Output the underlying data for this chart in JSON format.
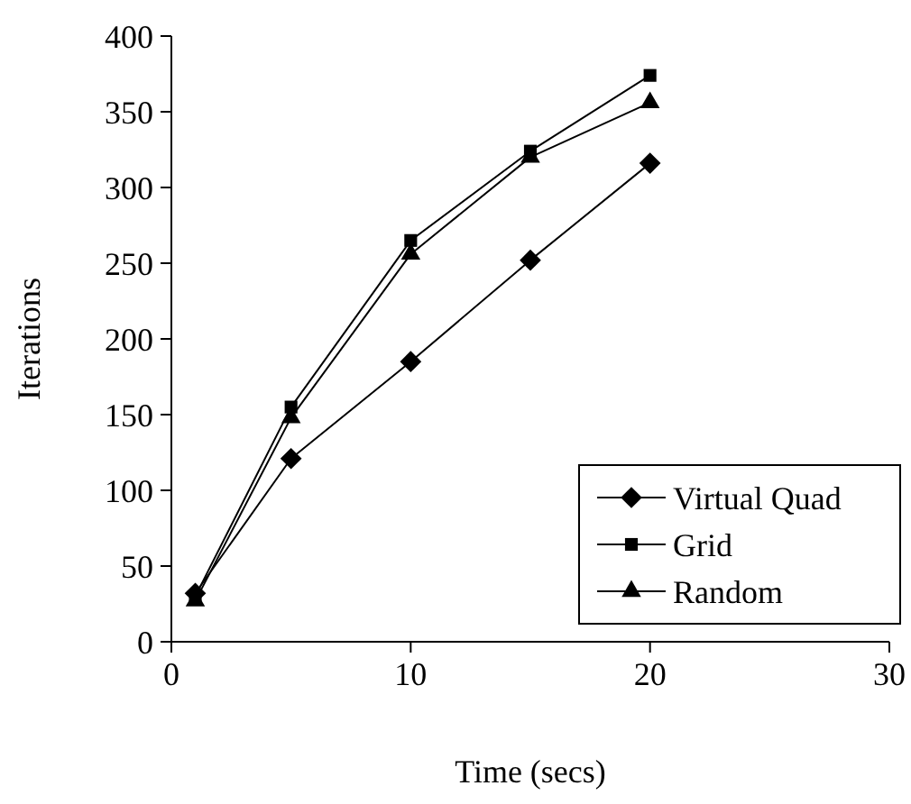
{
  "chart_data": {
    "type": "line",
    "xlabel": "Time (secs)",
    "ylabel": "Iterations",
    "x": [
      1,
      5,
      10,
      15,
      20
    ],
    "xlim": [
      0,
      30
    ],
    "xticks": [
      0,
      10,
      20,
      30
    ],
    "ylim": [
      0,
      400
    ],
    "yticks": [
      0,
      50,
      100,
      150,
      200,
      250,
      300,
      350,
      400
    ],
    "grid": false,
    "legend": "bottom right",
    "line_style": "solid",
    "series": [
      {
        "name": "Virtual Quad",
        "color": "#000000",
        "marker": "diamond",
        "values": [
          32,
          121,
          185,
          252,
          316
        ]
      },
      {
        "name": "Grid",
        "color": "#000000",
        "marker": "square",
        "values": [
          30,
          155,
          265,
          324,
          374
        ]
      },
      {
        "name": "Random",
        "color": "#000000",
        "marker": "triangle",
        "values": [
          27,
          148,
          256,
          320,
          356
        ]
      }
    ]
  }
}
